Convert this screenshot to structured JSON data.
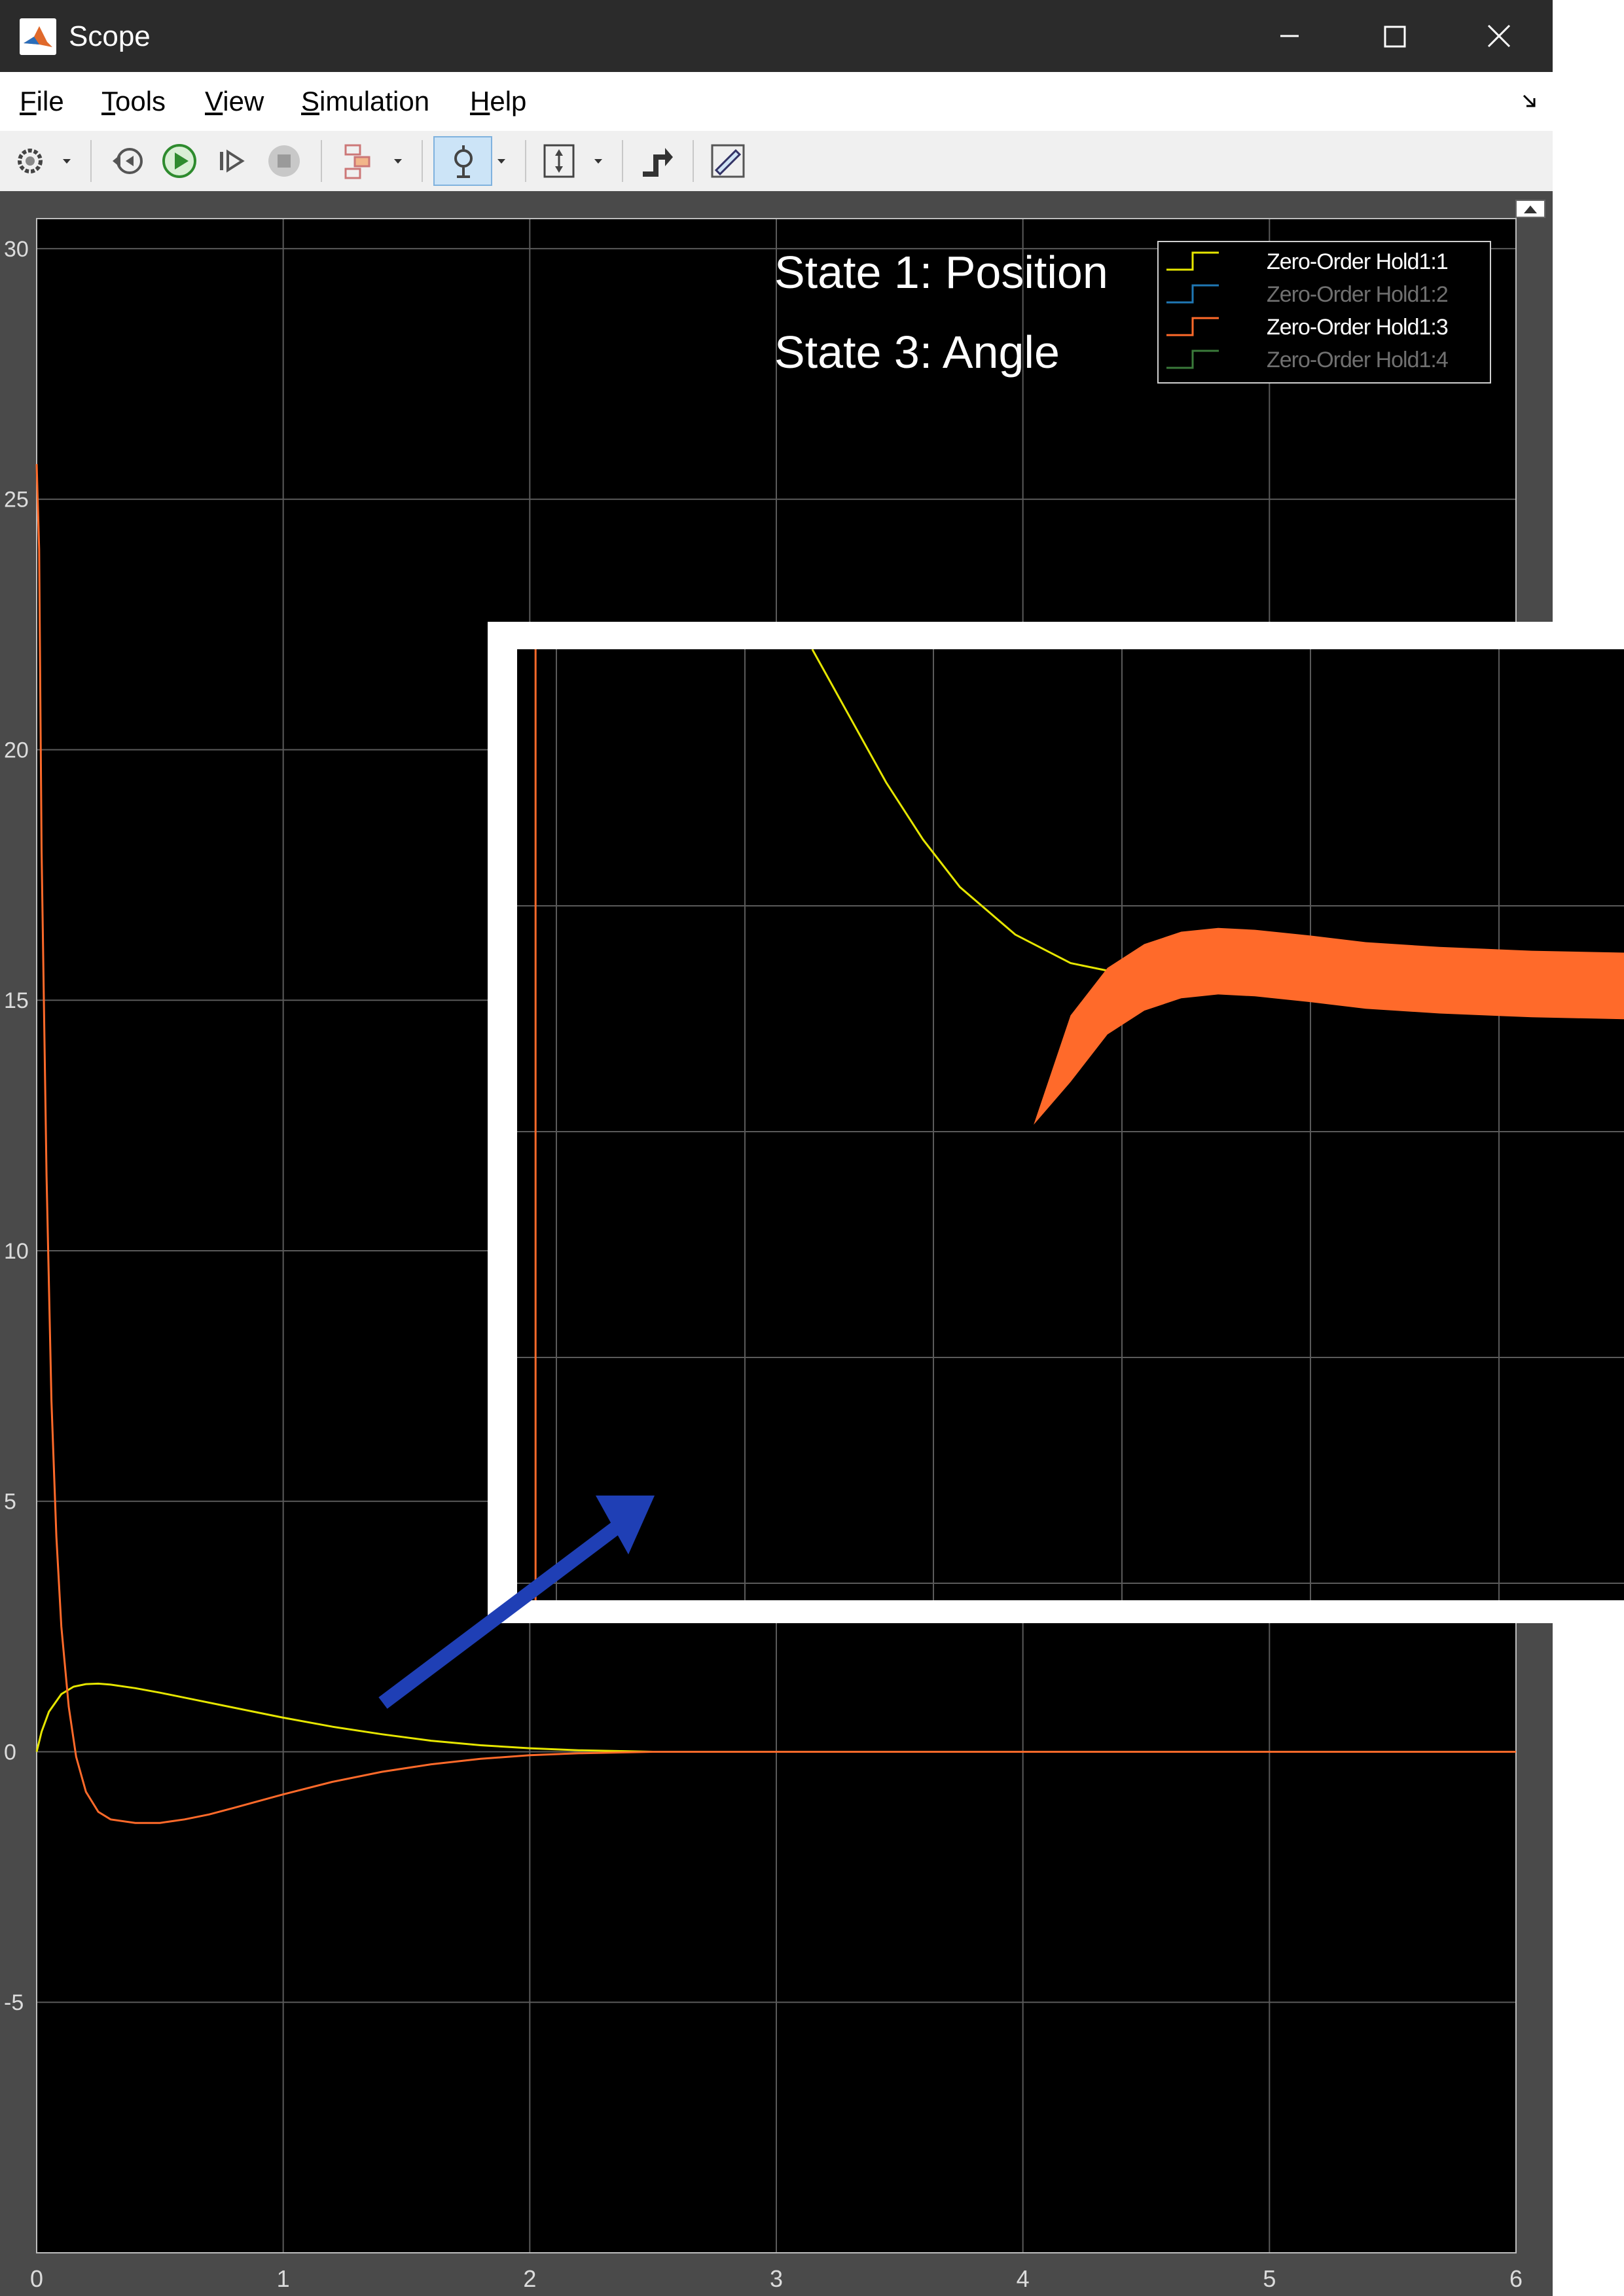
{
  "window": {
    "title": "Scope",
    "menu": [
      {
        "label": "File",
        "mnemonic": "F",
        "rest": "ile"
      },
      {
        "label": "Tools",
        "mnemonic": "T",
        "rest": "ools"
      },
      {
        "label": "View",
        "mnemonic": "V",
        "rest": "iew"
      },
      {
        "label": "Simulation",
        "mnemonic": "S",
        "rest": "imulation"
      },
      {
        "label": "Help",
        "mnemonic": "H",
        "rest": "elp"
      }
    ],
    "toolbar": [
      "settings-icon",
      "step-back-icon",
      "run-icon",
      "step-forward-icon",
      "stop-icon",
      "highlight-block-icon",
      "zoom-icon",
      "scale-axes-icon",
      "triggers-icon",
      "measurement-icon"
    ]
  },
  "annotations": {
    "state1": "State 1: Position",
    "state3": "State 3: Angle"
  },
  "legend": [
    {
      "label": "Zero-Order Hold1:1",
      "color": "#e6e600",
      "dim": false
    },
    {
      "label": "Zero-Order Hold1:2",
      "color": "#1f77b4",
      "dim": true
    },
    {
      "label": "Zero-Order Hold1:3",
      "color": "#ff6a2a",
      "dim": false
    },
    {
      "label": "Zero-Order Hold1:4",
      "color": "#3a7a3a",
      "dim": true
    }
  ],
  "chart_data": {
    "type": "line",
    "xlim": [
      0,
      6
    ],
    "ylim": [
      -10,
      30.6
    ],
    "xticks": [
      0,
      1,
      2,
      3,
      4,
      5,
      6
    ],
    "yticks": [
      -5,
      0,
      5,
      10,
      15,
      20,
      25,
      30
    ],
    "grid": true,
    "legend_position": "top-right",
    "series": [
      {
        "name": "Zero-Order Hold1:1",
        "color": "#e6e600",
        "x": [
          0,
          0.02,
          0.05,
          0.1,
          0.15,
          0.2,
          0.25,
          0.3,
          0.4,
          0.5,
          0.6,
          0.8,
          1.0,
          1.2,
          1.4,
          1.6,
          1.8,
          2.0,
          2.2,
          2.5
        ],
        "y": [
          0,
          0.4,
          0.8,
          1.15,
          1.3,
          1.35,
          1.36,
          1.34,
          1.27,
          1.18,
          1.08,
          0.88,
          0.68,
          0.5,
          0.35,
          0.22,
          0.13,
          0.07,
          0.03,
          0.0
        ]
      },
      {
        "name": "Zero-Order Hold1:3",
        "color": "#ff6a2a",
        "x": [
          0,
          0.01,
          0.02,
          0.04,
          0.06,
          0.08,
          0.1,
          0.13,
          0.16,
          0.2,
          0.25,
          0.3,
          0.4,
          0.5,
          0.6,
          0.7,
          0.8,
          1.0,
          1.2,
          1.4,
          1.6,
          1.8,
          2.0,
          2.2,
          2.5,
          3.0,
          4.0,
          5.0,
          6.0
        ],
        "y": [
          25.7,
          24,
          18,
          11.5,
          7,
          4.3,
          2.5,
          0.9,
          -0.1,
          -0.8,
          -1.2,
          -1.35,
          -1.42,
          -1.42,
          -1.35,
          -1.25,
          -1.12,
          -0.85,
          -0.6,
          -0.4,
          -0.25,
          -0.14,
          -0.07,
          -0.03,
          0.0,
          0.0,
          0.0,
          0.0,
          0.0
        ]
      }
    ],
    "inset": {
      "series": [
        {
          "name": "Zero-Order Hold1:1",
          "color": "#e6e600",
          "x": [
            0.16,
            0.18,
            0.2,
            0.22,
            0.24,
            0.27,
            0.3,
            0.33,
            0.36,
            0.4,
            0.45,
            0.5,
            0.6
          ],
          "y": [
            1.0,
            0.93,
            0.86,
            0.8,
            0.75,
            0.7,
            0.67,
            0.658,
            0.658,
            0.662,
            0.664,
            0.664,
            0.664
          ]
        },
        {
          "name": "Zero-Order Hold1:3",
          "color": "#ff6a2a",
          "x": [
            0.01,
            0.01,
            0.28,
            0.3,
            0.32,
            0.34,
            0.36,
            0.38,
            0.4,
            0.43,
            0.46,
            0.5,
            0.55,
            0.6
          ],
          "y": [
            0.0,
            1.0,
            0.5,
            0.58,
            0.63,
            0.655,
            0.668,
            0.672,
            0.67,
            0.664,
            0.657,
            0.652,
            0.648,
            0.646
          ],
          "band": 0.035
        }
      ]
    }
  }
}
